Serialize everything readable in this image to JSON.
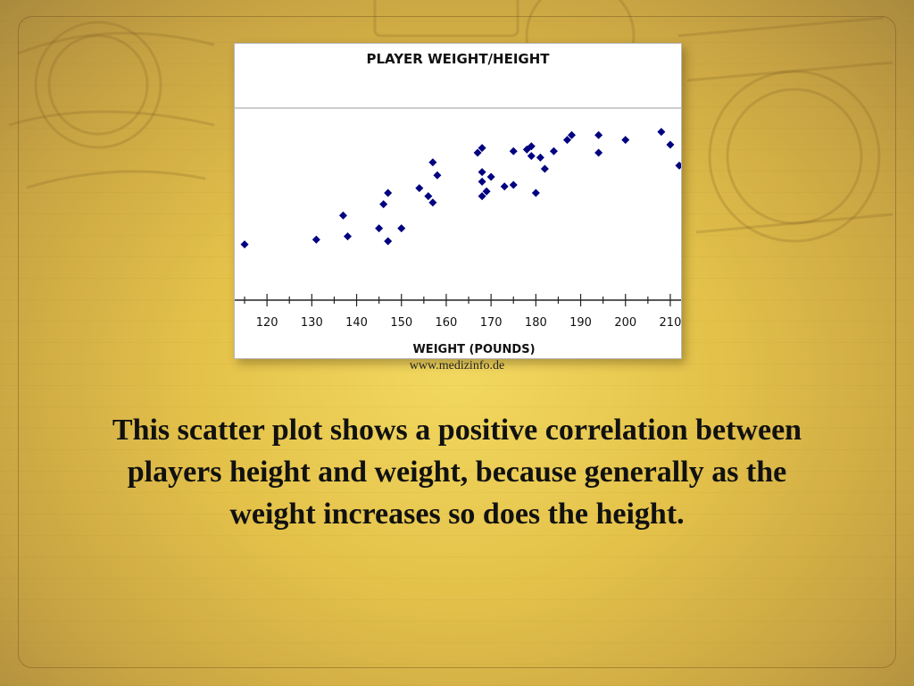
{
  "slide": {
    "source": "www.medizinfo.de",
    "caption": "This scatter plot shows a positive correlation between players height and weight, because generally as the weight increases so does the height.",
    "accent_color": "#000080"
  },
  "chart_data": {
    "type": "scatter",
    "title": "PLAYER WEIGHT/HEIGHT",
    "xlabel": "WEIGHT (POUNDS)",
    "ylabel": "",
    "xlim": [
      114,
      212
    ],
    "ylim": [
      0,
      1
    ],
    "x_ticks": [
      120,
      130,
      140,
      150,
      160,
      170,
      180,
      190,
      200,
      210
    ],
    "grid": false,
    "marker_color": "#000080",
    "points": [
      {
        "x": 115,
        "y": 0.28
      },
      {
        "x": 131,
        "y": 0.31
      },
      {
        "x": 137,
        "y": 0.46
      },
      {
        "x": 138,
        "y": 0.33
      },
      {
        "x": 145,
        "y": 0.38
      },
      {
        "x": 146,
        "y": 0.53
      },
      {
        "x": 147,
        "y": 0.6
      },
      {
        "x": 147,
        "y": 0.3
      },
      {
        "x": 150,
        "y": 0.38
      },
      {
        "x": 154,
        "y": 0.63
      },
      {
        "x": 156,
        "y": 0.58
      },
      {
        "x": 157,
        "y": 0.54
      },
      {
        "x": 157,
        "y": 0.79
      },
      {
        "x": 158,
        "y": 0.71
      },
      {
        "x": 167,
        "y": 0.85
      },
      {
        "x": 168,
        "y": 0.88
      },
      {
        "x": 168,
        "y": 0.73
      },
      {
        "x": 168,
        "y": 0.67
      },
      {
        "x": 168,
        "y": 0.58
      },
      {
        "x": 169,
        "y": 0.61
      },
      {
        "x": 170,
        "y": 0.7
      },
      {
        "x": 173,
        "y": 0.64
      },
      {
        "x": 175,
        "y": 0.65
      },
      {
        "x": 175,
        "y": 0.86
      },
      {
        "x": 178,
        "y": 0.87
      },
      {
        "x": 179,
        "y": 0.83
      },
      {
        "x": 179,
        "y": 0.89
      },
      {
        "x": 180,
        "y": 0.6
      },
      {
        "x": 181,
        "y": 0.82
      },
      {
        "x": 182,
        "y": 0.75
      },
      {
        "x": 184,
        "y": 0.86
      },
      {
        "x": 187,
        "y": 0.93
      },
      {
        "x": 188,
        "y": 0.96
      },
      {
        "x": 194,
        "y": 0.96
      },
      {
        "x": 194,
        "y": 0.85
      },
      {
        "x": 200,
        "y": 0.93
      },
      {
        "x": 208,
        "y": 0.98
      },
      {
        "x": 210,
        "y": 0.9
      },
      {
        "x": 212,
        "y": 0.77
      }
    ]
  }
}
